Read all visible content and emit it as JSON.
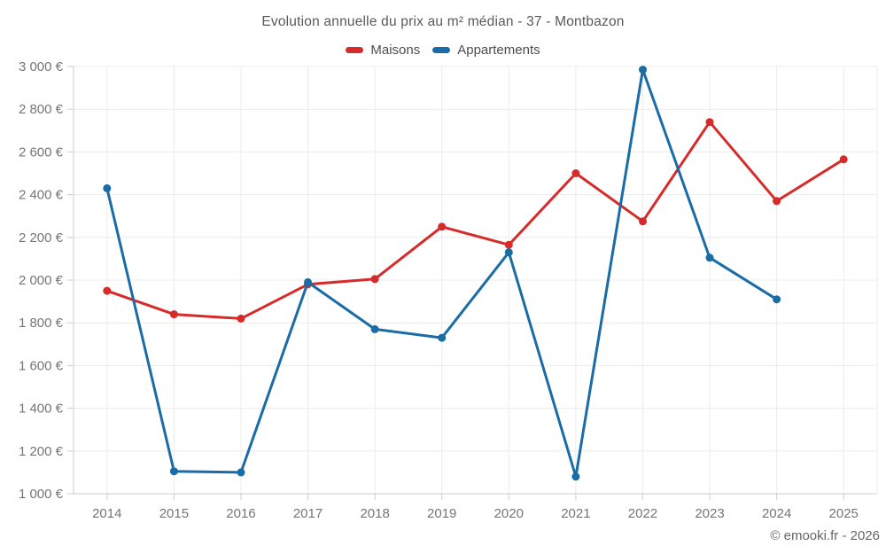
{
  "title": "Evolution annuelle du prix au m² médian - 37 - Montbazon",
  "footer": "© emooki.fr - 2026",
  "colors": {
    "maisons": "#d62b2b",
    "appartements": "#1a6ca6",
    "grid": "#ececec",
    "axis": "#cccccc",
    "tick_text": "#757575"
  },
  "chart_data": {
    "type": "line",
    "title": "Evolution annuelle du prix au m² médian - 37 - Montbazon",
    "categories": [
      "2014",
      "2015",
      "2016",
      "2017",
      "2018",
      "2019",
      "2020",
      "2021",
      "2022",
      "2023",
      "2024",
      "2025"
    ],
    "series": [
      {
        "name": "Maisons",
        "color": "#d62b2b",
        "values": [
          1950,
          1840,
          1820,
          1980,
          2005,
          2250,
          2165,
          2500,
          2275,
          2740,
          2370,
          2565
        ]
      },
      {
        "name": "Appartements",
        "color": "#1a6ca6",
        "values": [
          2430,
          1105,
          1100,
          1990,
          1770,
          1730,
          2130,
          1080,
          2985,
          2105,
          1910,
          null
        ]
      }
    ],
    "ylim": [
      1000,
      3000
    ],
    "ytick_step": 200,
    "ytick_labels": [
      "1 000 €",
      "1 200 €",
      "1 400 €",
      "1 600 €",
      "1 800 €",
      "2 000 €",
      "2 200 €",
      "2 400 €",
      "2 600 €",
      "2 800 €",
      "3 000 €"
    ],
    "grid": true,
    "legend_position": "top",
    "xlabel": "",
    "ylabel": ""
  }
}
